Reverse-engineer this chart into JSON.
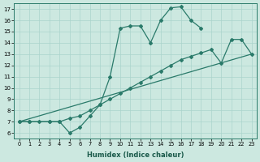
{
  "title": "",
  "xlabel": "Humidex (Indice chaleur)",
  "bg_color": "#cce8e0",
  "line_color": "#2a7a6a",
  "grid_color": "#aad4cc",
  "xlim": [
    -0.5,
    23.5
  ],
  "ylim": [
    5.5,
    17.5
  ],
  "yticks": [
    6,
    7,
    8,
    9,
    10,
    11,
    12,
    13,
    14,
    15,
    16,
    17
  ],
  "xticks": [
    0,
    1,
    2,
    3,
    4,
    5,
    6,
    7,
    8,
    9,
    10,
    11,
    12,
    13,
    14,
    15,
    16,
    17,
    18,
    19,
    20,
    21,
    22,
    23
  ],
  "curve1_x": [
    0,
    1,
    2,
    3,
    4,
    5,
    6,
    7,
    8,
    9,
    10,
    11,
    12,
    13,
    14,
    15,
    16,
    17,
    18
  ],
  "curve1_y": [
    7,
    7,
    7,
    7,
    7,
    6,
    6.5,
    7.5,
    8.5,
    11,
    15.3,
    15.5,
    15.5,
    14,
    16,
    17.1,
    17.2,
    16,
    15.3
  ],
  "curve2_x": [
    0,
    1,
    3,
    4,
    5,
    6,
    7,
    8,
    9,
    10,
    11,
    12,
    13,
    14,
    15,
    16,
    17,
    18,
    19,
    20,
    21,
    22,
    23
  ],
  "curve2_y": [
    7,
    7,
    7,
    7,
    7.3,
    7.5,
    8.0,
    8.5,
    9.0,
    9.5,
    10.0,
    10.5,
    11.0,
    11.5,
    12.0,
    12.5,
    12.8,
    13.1,
    13.4,
    12.2,
    14.3,
    14.3,
    13
  ],
  "line3_x": [
    0,
    23
  ],
  "line3_y": [
    7,
    13
  ]
}
